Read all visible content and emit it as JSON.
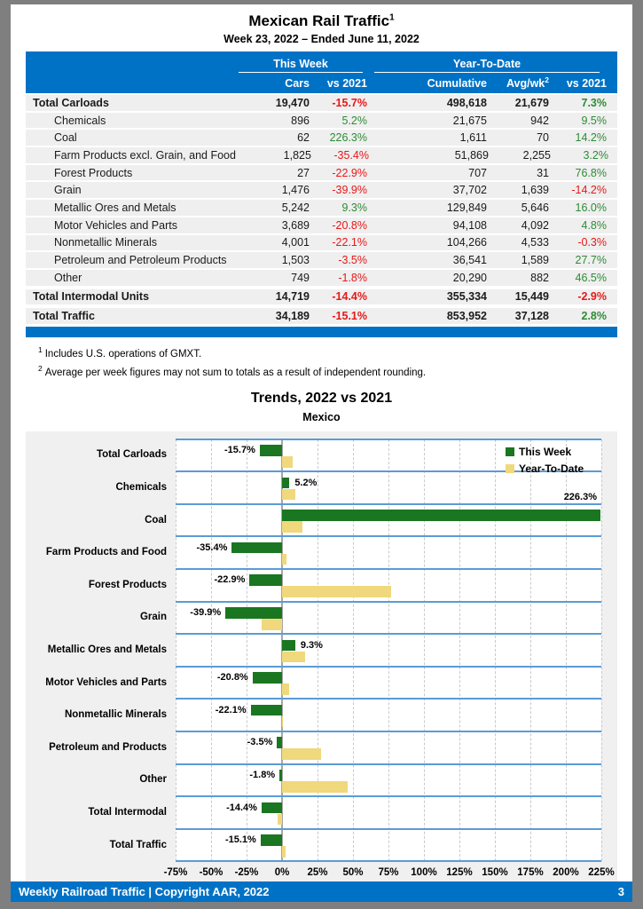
{
  "page": {
    "title": "Mexican Rail Traffic",
    "title_superscript": "1",
    "subtitle": "Week 23, 2022 – Ended June 11, 2022",
    "footnote1_sup": "1",
    "footnote1": "Includes U.S. operations of GMXT.",
    "footnote2_sup": "2",
    "footnote2": "Average per week figures may not sum to totals as a result of independent rounding.",
    "footer_left": "Weekly Railroad Traffic | Copyright AAR, 2022",
    "footer_page": "3"
  },
  "colors": {
    "accent_blue": "#0072c6",
    "negative_red": "#e81717",
    "positive_green": "#2e8b35",
    "separator_blue": "#5b9bd5",
    "row_gray": "#efefef"
  },
  "table": {
    "group_headers": {
      "this_week": "This Week",
      "ytd": "Year-To-Date"
    },
    "col_headers": {
      "cars": "Cars",
      "week_vs": "vs 2021",
      "cumulative": "Cumulative",
      "avg": "Avg/wk",
      "avg_sup": "2",
      "ytd_vs": "vs 2021"
    },
    "rows": [
      {
        "label": "Total Carloads",
        "bold": true,
        "indent": false,
        "gap_before": false,
        "cars": "19,470",
        "week_vs": "-15.7%",
        "cumulative": "498,618",
        "avg": "21,679",
        "ytd_vs": "7.3%"
      },
      {
        "label": "Chemicals",
        "bold": false,
        "indent": true,
        "gap_before": false,
        "cars": "896",
        "week_vs": "5.2%",
        "cumulative": "21,675",
        "avg": "942",
        "ytd_vs": "9.5%"
      },
      {
        "label": "Coal",
        "bold": false,
        "indent": true,
        "gap_before": false,
        "cars": "62",
        "week_vs": "226.3%",
        "cumulative": "1,611",
        "avg": "70",
        "ytd_vs": "14.2%"
      },
      {
        "label": "Farm Products excl. Grain, and Food",
        "bold": false,
        "indent": true,
        "gap_before": false,
        "cars": "1,825",
        "week_vs": "-35.4%",
        "cumulative": "51,869",
        "avg": "2,255",
        "ytd_vs": "3.2%"
      },
      {
        "label": "Forest Products",
        "bold": false,
        "indent": true,
        "gap_before": false,
        "cars": "27",
        "week_vs": "-22.9%",
        "cumulative": "707",
        "avg": "31",
        "ytd_vs": "76.8%"
      },
      {
        "label": "Grain",
        "bold": false,
        "indent": true,
        "gap_before": false,
        "cars": "1,476",
        "week_vs": "-39.9%",
        "cumulative": "37,702",
        "avg": "1,639",
        "ytd_vs": "-14.2%"
      },
      {
        "label": "Metallic Ores and Metals",
        "bold": false,
        "indent": true,
        "gap_before": false,
        "cars": "5,242",
        "week_vs": "9.3%",
        "cumulative": "129,849",
        "avg": "5,646",
        "ytd_vs": "16.0%"
      },
      {
        "label": "Motor Vehicles and Parts",
        "bold": false,
        "indent": true,
        "gap_before": false,
        "cars": "3,689",
        "week_vs": "-20.8%",
        "cumulative": "94,108",
        "avg": "4,092",
        "ytd_vs": "4.8%"
      },
      {
        "label": "Nonmetallic Minerals",
        "bold": false,
        "indent": true,
        "gap_before": false,
        "cars": "4,001",
        "week_vs": "-22.1%",
        "cumulative": "104,266",
        "avg": "4,533",
        "ytd_vs": "-0.3%"
      },
      {
        "label": "Petroleum and Petroleum Products",
        "bold": false,
        "indent": true,
        "gap_before": false,
        "cars": "1,503",
        "week_vs": "-3.5%",
        "cumulative": "36,541",
        "avg": "1,589",
        "ytd_vs": "27.7%"
      },
      {
        "label": "Other",
        "bold": false,
        "indent": true,
        "gap_before": false,
        "cars": "749",
        "week_vs": "-1.8%",
        "cumulative": "20,290",
        "avg": "882",
        "ytd_vs": "46.5%"
      },
      {
        "label": "Total Intermodal Units",
        "bold": true,
        "indent": false,
        "gap_before": true,
        "cars": "14,719",
        "week_vs": "-14.4%",
        "cumulative": "355,334",
        "avg": "15,449",
        "ytd_vs": "-2.9%"
      },
      {
        "label": "Total Traffic",
        "bold": true,
        "indent": false,
        "gap_before": true,
        "cars": "34,189",
        "week_vs": "-15.1%",
        "cumulative": "853,952",
        "avg": "37,128",
        "ytd_vs": "2.8%"
      }
    ]
  },
  "chart_data": {
    "type": "bar",
    "orientation": "horizontal",
    "title": "Trends, 2022 vs 2021",
    "subtitle": "Mexico",
    "categories": [
      "Total Carloads",
      "Chemicals",
      "Coal",
      "Farm Products and Food",
      "Forest Products",
      "Grain",
      "Metallic Ores and Metals",
      "Motor Vehicles and Parts",
      "Nonmetallic Minerals",
      "Petroleum and Products",
      "Other",
      "Total Intermodal",
      "Total Traffic"
    ],
    "series": [
      {
        "name": "This Week",
        "color": "#1a7620",
        "values": [
          -15.7,
          5.2,
          226.3,
          -35.4,
          -22.9,
          -39.9,
          9.3,
          -20.8,
          -22.1,
          -3.5,
          -1.8,
          -14.4,
          -15.1
        ]
      },
      {
        "name": "Year-To-Date",
        "color": "#f0d87c",
        "values": [
          7.3,
          9.5,
          14.2,
          3.2,
          76.8,
          -14.2,
          16.0,
          4.8,
          -0.3,
          27.7,
          46.5,
          -2.9,
          2.8
        ]
      }
    ],
    "data_labels": [
      "-15.7%",
      "5.2%",
      "226.3%",
      "-35.4%",
      "-22.9%",
      "-39.9%",
      "9.3%",
      "-20.8%",
      "-22.1%",
      "-3.5%",
      "-1.8%",
      "-14.4%",
      "-15.1%"
    ],
    "x_ticks": [
      "-75%",
      "-50%",
      "-25%",
      "0%",
      "25%",
      "50%",
      "75%",
      "100%",
      "125%",
      "150%",
      "175%",
      "200%",
      "225%"
    ],
    "xlim": [
      -75,
      225
    ],
    "legend_position": "top-right",
    "grid": "vertical-dashed"
  }
}
